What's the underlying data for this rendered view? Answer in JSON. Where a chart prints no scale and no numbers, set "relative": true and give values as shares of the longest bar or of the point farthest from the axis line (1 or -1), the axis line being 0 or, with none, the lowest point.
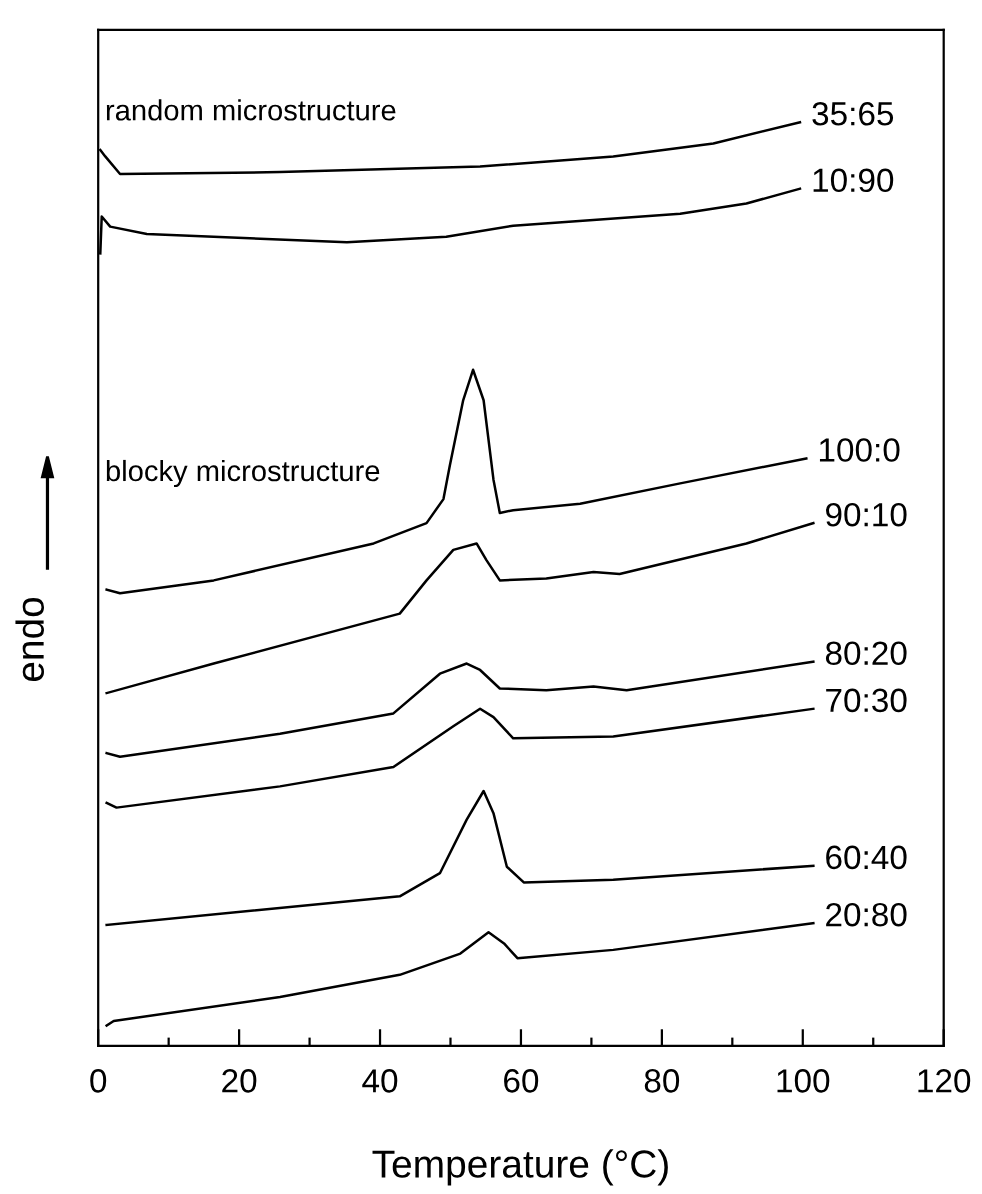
{
  "chart_data": {
    "type": "line",
    "relative": true,
    "xlabel": "Temperature (°C)",
    "ylabel": "endo",
    "xlim": [
      0,
      120
    ],
    "xticks": [
      0,
      {
        "value": 10,
        "label": null
      },
      20,
      {
        "value": 30,
        "label": null
      },
      40,
      {
        "value": 50,
        "label": null
      },
      60,
      {
        "value": 70,
        "label": null
      },
      80,
      {
        "value": 90,
        "label": null
      },
      100,
      {
        "value": 110,
        "label": null
      },
      120
    ],
    "grid": false,
    "legend": false,
    "marker": "none",
    "line_style": "solid",
    "annotations": [
      "random microstructure",
      "blocky microstructure"
    ],
    "series": [
      {
        "name": "35:65",
        "color": "#000000",
        "x": [
          0.3,
          1.0,
          3.1,
          25.8,
          54.2,
          73.1,
          87.3,
          99.6
        ],
        "values": [
          0.97,
          0.963,
          0.944,
          0.946,
          0.952,
          0.963,
          0.977,
          1.0
        ]
      },
      {
        "name": "10:90",
        "color": "#000000",
        "x": [
          0.3,
          0.5,
          1.7,
          6.9,
          35.3,
          49.4,
          58.9,
          82.6,
          92.0,
          99.6
        ],
        "values": [
          0.858,
          0.898,
          0.887,
          0.879,
          0.87,
          0.876,
          0.888,
          0.901,
          0.912,
          0.928
        ]
      },
      {
        "name": "100:0",
        "color": "#000000",
        "x": [
          1.2,
          3.1,
          16.4,
          39.1,
          46.6,
          49.0,
          49.9,
          51.8,
          53.2,
          54.7,
          56.1,
          57.0,
          58.9,
          68.4,
          82.6,
          100.5
        ],
        "values": [
          0.494,
          0.49,
          0.504,
          0.544,
          0.566,
          0.592,
          0.628,
          0.699,
          0.732,
          0.699,
          0.613,
          0.577,
          0.58,
          0.587,
          0.609,
          0.636
        ]
      },
      {
        "name": "90:10",
        "color": "#000000",
        "x": [
          1.2,
          16.4,
          42.8,
          46.6,
          50.4,
          53.7,
          55.1,
          57.0,
          63.6,
          70.3,
          74.0,
          92.0,
          101.5
        ],
        "values": [
          0.382,
          0.414,
          0.468,
          0.504,
          0.537,
          0.544,
          0.526,
          0.504,
          0.506,
          0.513,
          0.511,
          0.544,
          0.566
        ]
      },
      {
        "name": "80:20",
        "color": "#000000",
        "x": [
          1.2,
          3.1,
          25.8,
          41.9,
          48.5,
          52.3,
          54.2,
          57.0,
          63.6,
          70.3,
          75.0,
          101.5
        ],
        "values": [
          0.317,
          0.313,
          0.338,
          0.36,
          0.403,
          0.414,
          0.407,
          0.387,
          0.385,
          0.389,
          0.385,
          0.416
        ]
      },
      {
        "name": "70:30",
        "color": "#000000",
        "x": [
          1.2,
          2.6,
          25.8,
          41.9,
          50.4,
          54.2,
          56.1,
          58.9,
          73.1,
          101.5
        ],
        "values": [
          0.263,
          0.258,
          0.281,
          0.302,
          0.346,
          0.365,
          0.356,
          0.333,
          0.335,
          0.365
        ]
      },
      {
        "name": "60:40",
        "color": "#000000",
        "x": [
          1.2,
          42.8,
          48.5,
          52.3,
          54.7,
          56.1,
          58.0,
          60.4,
          73.1,
          101.5
        ],
        "values": [
          0.131,
          0.162,
          0.187,
          0.245,
          0.276,
          0.252,
          0.194,
          0.177,
          0.18,
          0.195
        ]
      },
      {
        "name": "20:80",
        "color": "#000000",
        "x": [
          1.2,
          2.2,
          25.8,
          42.8,
          51.4,
          55.4,
          57.6,
          59.5,
          73.1,
          101.5
        ],
        "values": [
          0.022,
          0.027,
          0.053,
          0.077,
          0.1,
          0.123,
          0.111,
          0.095,
          0.104,
          0.133
        ]
      }
    ]
  }
}
